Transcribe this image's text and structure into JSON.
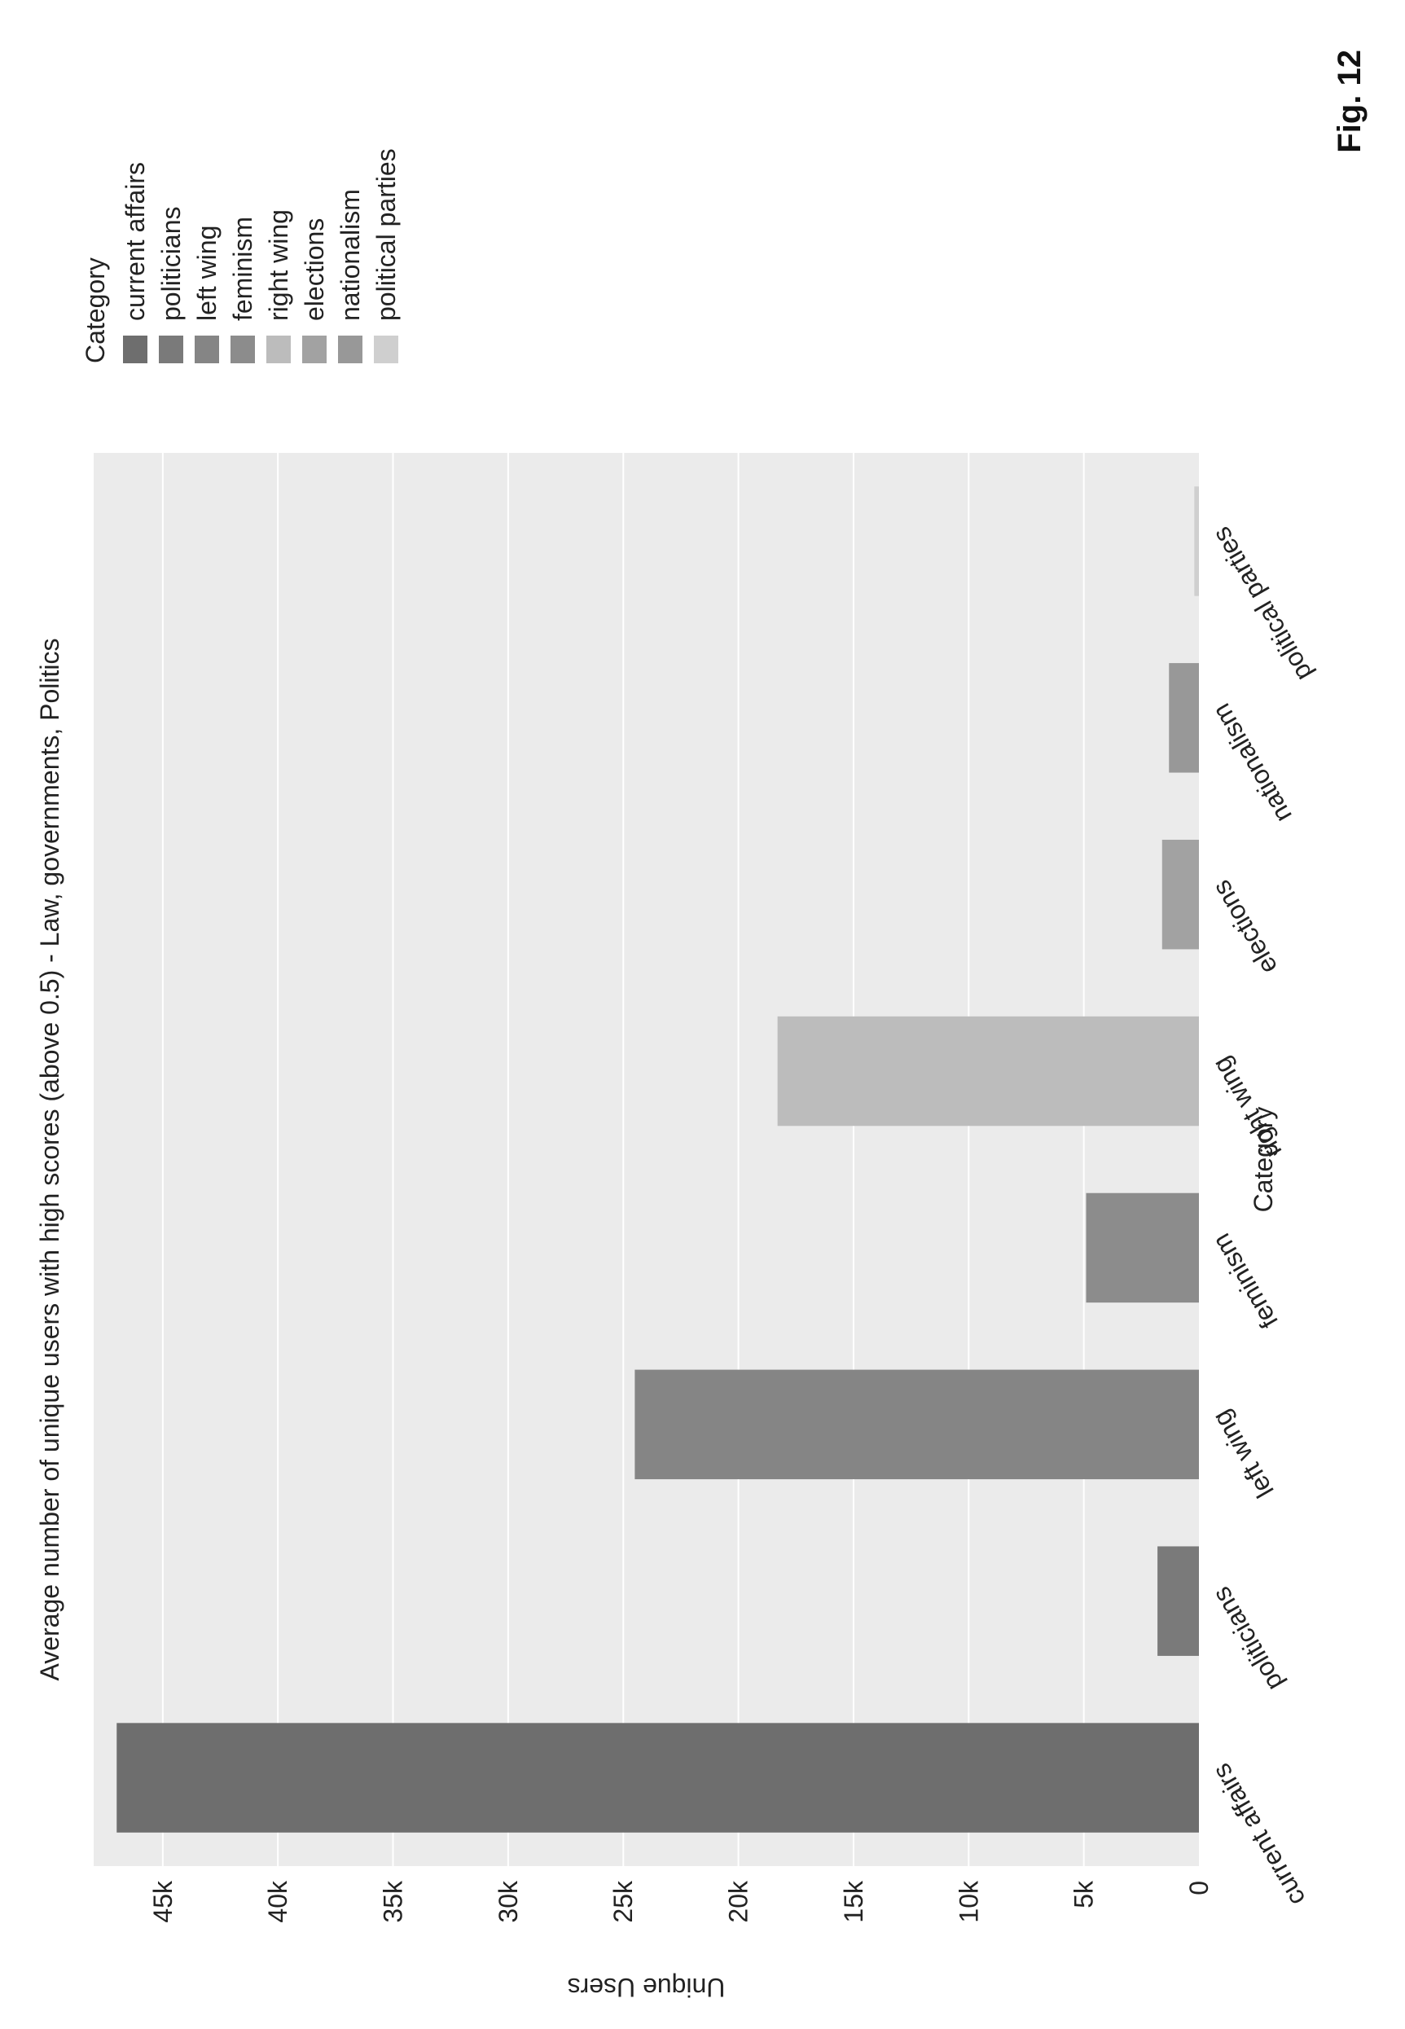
{
  "figure_label": "Fig. 12",
  "chart_data": {
    "type": "bar",
    "title": "Average number of unique users with high scores (above 0.5) - Law, governments, Politics",
    "xlabel": "Category",
    "ylabel": "Unique Users",
    "categories": [
      "current affairs",
      "politicians",
      "left wing",
      "feminism",
      "right wing",
      "elections",
      "nationalism",
      "political parties"
    ],
    "values": [
      47000,
      1800,
      24500,
      4900,
      18300,
      1600,
      1300,
      200
    ],
    "ylim": [
      0,
      48000
    ],
    "y_ticks": [
      {
        "value": 0,
        "label": "0"
      },
      {
        "value": 5000,
        "label": "5k"
      },
      {
        "value": 10000,
        "label": "10k"
      },
      {
        "value": 15000,
        "label": "15k"
      },
      {
        "value": 20000,
        "label": "20k"
      },
      {
        "value": 25000,
        "label": "25k"
      },
      {
        "value": 30000,
        "label": "30k"
      },
      {
        "value": 35000,
        "label": "35k"
      },
      {
        "value": 40000,
        "label": "40k"
      },
      {
        "value": 45000,
        "label": "45k"
      }
    ],
    "grid": true,
    "legend": {
      "title": "Category",
      "position": "right",
      "entries": [
        "current affairs",
        "politicians",
        "left wing",
        "feminism",
        "right wing",
        "elections",
        "nationalism",
        "political parties"
      ]
    },
    "colors": [
      "#6e6e6e",
      "#7a7a7a",
      "#858585",
      "#8c8c8c",
      "#bcbcbc",
      "#a2a2a2",
      "#989898",
      "#cfcfcf"
    ],
    "plot_background": "#ebebeb",
    "grid_color": "#ffffff"
  }
}
